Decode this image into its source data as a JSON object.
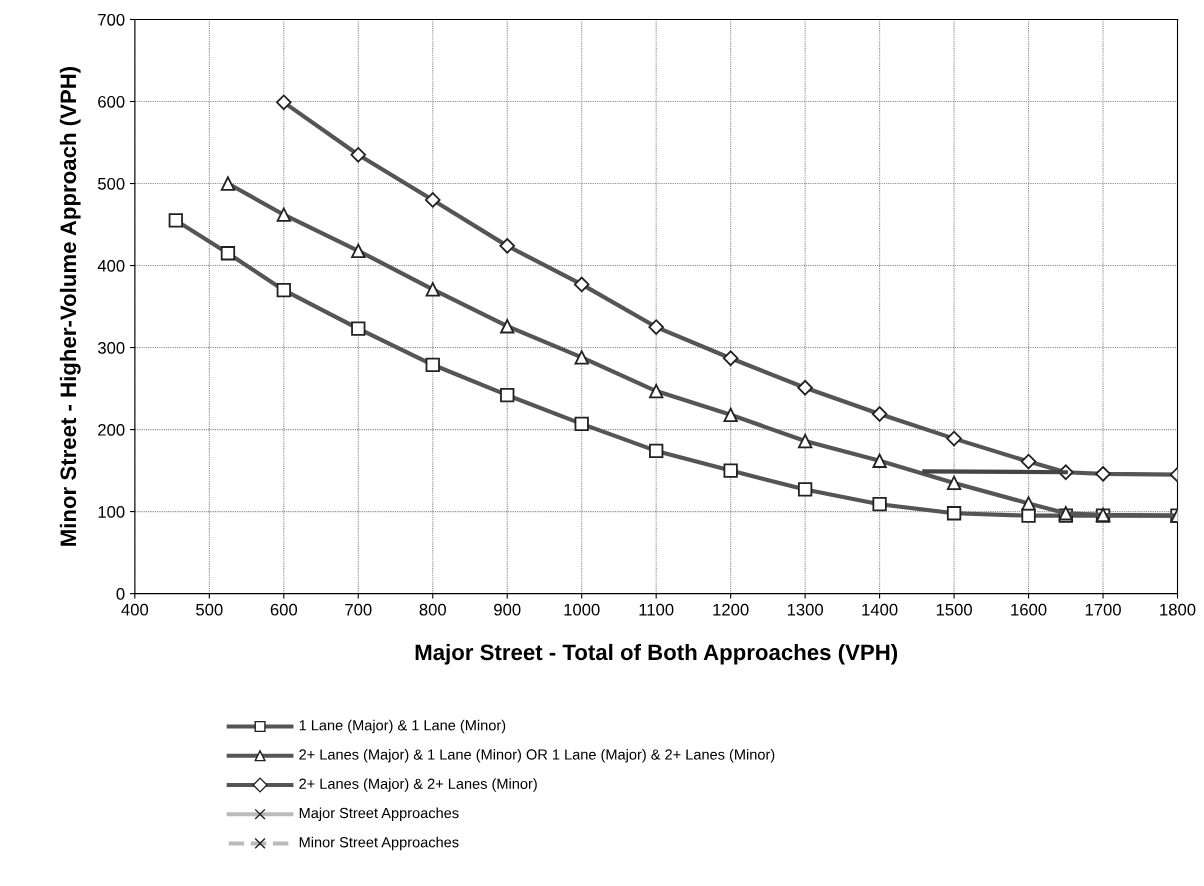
{
  "chart_data": {
    "type": "line",
    "xlabel": "Major Street - Total of Both Approaches (VPH)",
    "ylabel": "Minor Street - Higher-Volume Approach (VPH)",
    "xlim": [
      400,
      1800
    ],
    "xticks": [
      400,
      500,
      600,
      700,
      800,
      900,
      1000,
      1100,
      1200,
      1300,
      1400,
      1500,
      1600,
      1700,
      1800
    ],
    "ylim": [
      0,
      700
    ],
    "yticks": [
      0,
      100,
      200,
      300,
      400,
      500,
      600,
      700
    ],
    "grid": true,
    "legend": "bottom",
    "series": [
      {
        "name": "1 Lane (Major) & 1 Lane (Minor)",
        "color": "#555555",
        "marker": "square",
        "x": [
          455,
          525,
          600,
          700,
          800,
          900,
          1000,
          1100,
          1200,
          1300,
          1400,
          1500,
          1600,
          1650,
          1700,
          1800
        ],
        "values": [
          455,
          415,
          370,
          323,
          279,
          242,
          207,
          174,
          150,
          127,
          109,
          98,
          95,
          95,
          95,
          95
        ]
      },
      {
        "name": "2+ Lanes (Major) & 1 Lane (Minor) OR 1 Lane (Major) & 2+ Lanes (Minor)",
        "color": "#555555",
        "marker": "triangle",
        "x": [
          525,
          600,
          700,
          800,
          900,
          1000,
          1100,
          1200,
          1300,
          1400,
          1500,
          1600,
          1650,
          1700,
          1800
        ],
        "values": [
          500,
          462,
          418,
          371,
          326,
          288,
          247,
          218,
          186,
          162,
          135,
          110,
          98,
          96,
          95
        ]
      },
      {
        "name": "2+ Lanes (Major) & 2+ Lanes (Minor)",
        "color": "#555555",
        "marker": "diamond",
        "x": [
          600,
          700,
          800,
          900,
          1000,
          1100,
          1200,
          1300,
          1400,
          1500,
          1600,
          1650,
          1700,
          1800
        ],
        "values": [
          599,
          535,
          480,
          424,
          377,
          325,
          287,
          251,
          219,
          189,
          161,
          148,
          146,
          145
        ]
      },
      {
        "color": "#444444",
        "marker": "none",
        "x": [
          1460,
          1650
        ],
        "values": [
          149,
          148
        ]
      },
      {
        "name": "Major Street Approaches",
        "color": "#bbbbbb",
        "marker": "cross",
        "line_style": "solid"
      },
      {
        "name": "Minor Street Approaches",
        "color": "#bbbbbb",
        "marker": "cross",
        "line_style": "dashed"
      }
    ]
  }
}
